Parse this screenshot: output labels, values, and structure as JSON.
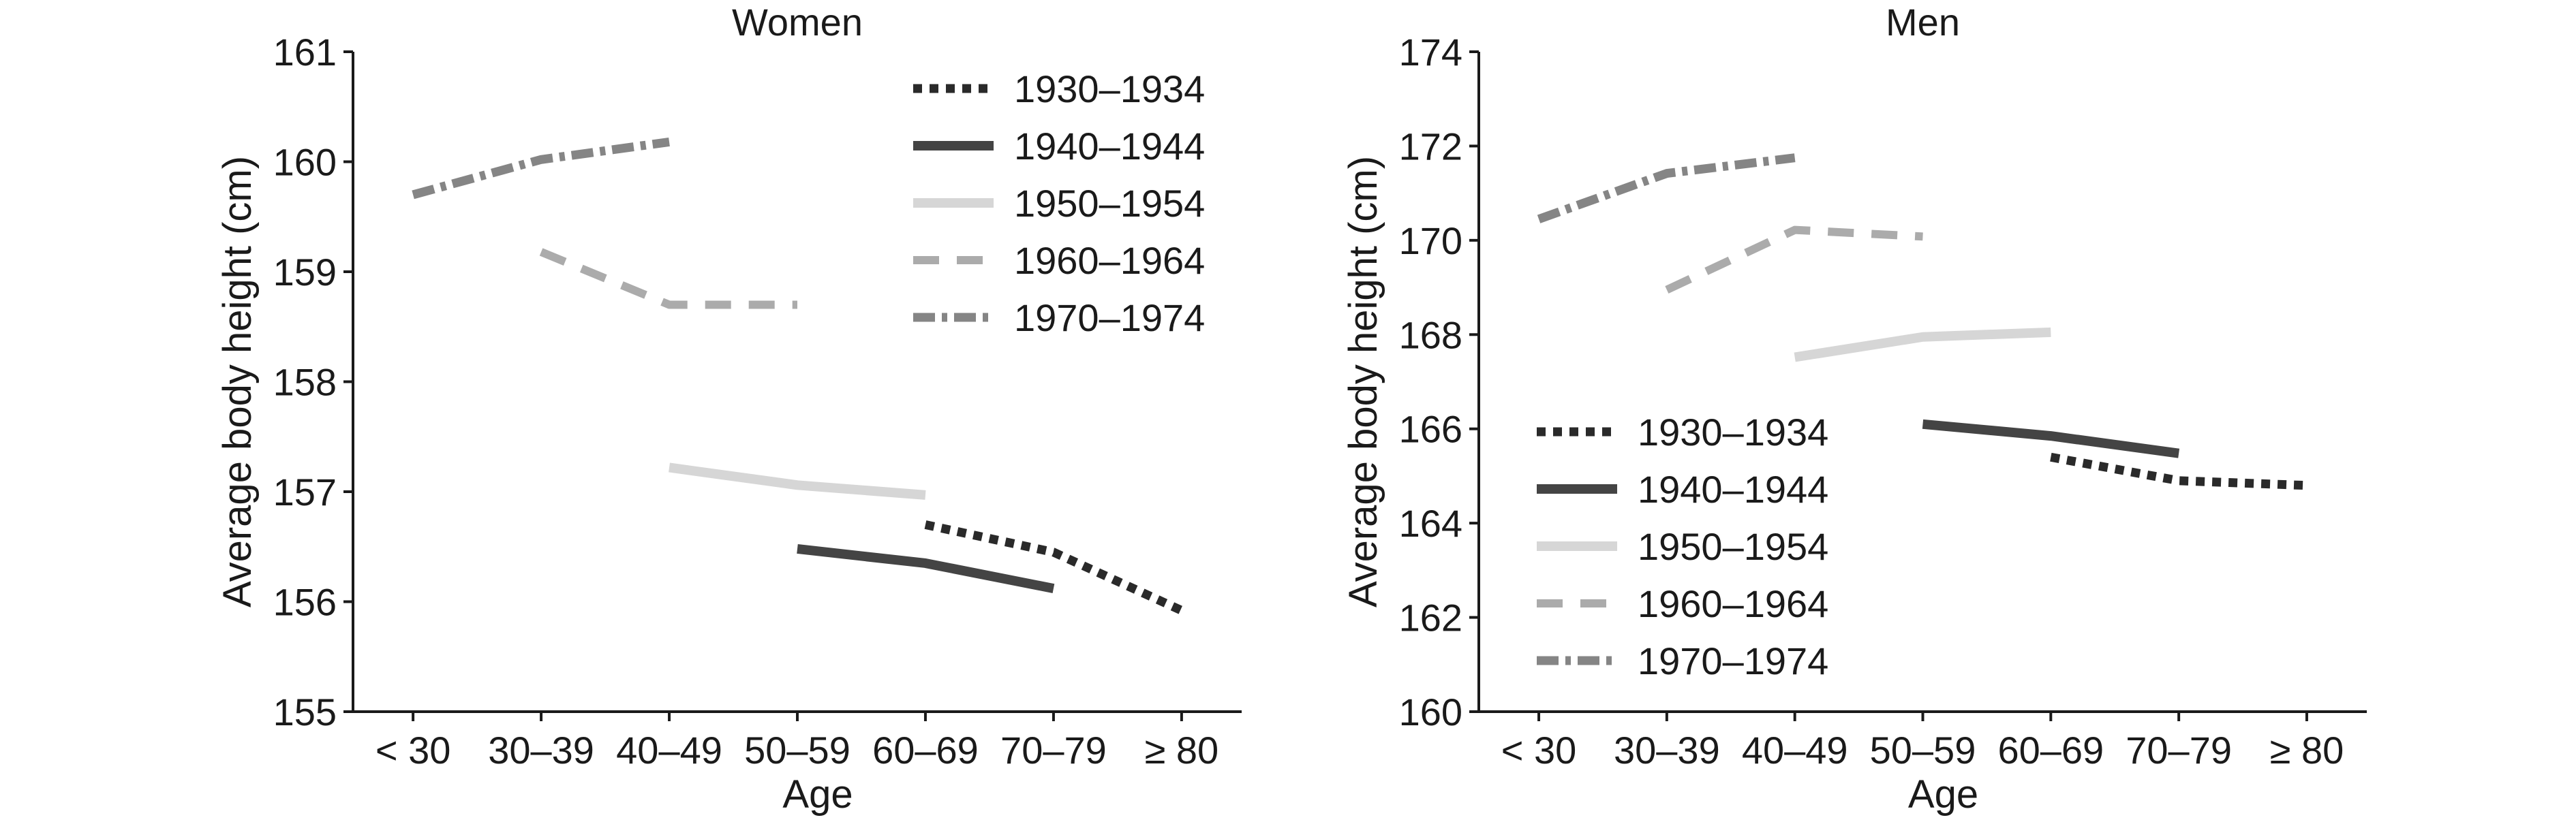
{
  "chart_data": [
    {
      "type": "line",
      "title": "Women",
      "xlabel": "Age",
      "ylabel": "Average body height (cm)",
      "categories": [
        "< 30",
        "30–39",
        "40–49",
        "50–59",
        "60–69",
        "70–79",
        "≥ 80"
      ],
      "ylim": [
        155,
        161
      ],
      "yticks": [
        155,
        156,
        157,
        158,
        159,
        160,
        161
      ],
      "grid": false,
      "legend_position": "top-right",
      "series": [
        {
          "name": "1930–1934",
          "color": "#2a2a2a",
          "dash": "dotted",
          "points": [
            {
              "x": "60–69",
              "y": 156.7
            },
            {
              "x": "70–79",
              "y": 156.45
            },
            {
              "x": "≥ 80",
              "y": 155.92
            }
          ]
        },
        {
          "name": "1940–1944",
          "color": "#444444",
          "dash": "solid",
          "points": [
            {
              "x": "50–59",
              "y": 156.48
            },
            {
              "x": "60–69",
              "y": 156.35
            },
            {
              "x": "70–79",
              "y": 156.12
            }
          ]
        },
        {
          "name": "1950–1954",
          "color": "#d6d6d6",
          "dash": "solid",
          "points": [
            {
              "x": "40–49",
              "y": 157.22
            },
            {
              "x": "50–59",
              "y": 157.06
            },
            {
              "x": "60–69",
              "y": 156.97
            }
          ]
        },
        {
          "name": "1960–1964",
          "color": "#ababab",
          "dash": "dashed",
          "points": [
            {
              "x": "30–39",
              "y": 159.18
            },
            {
              "x": "40–49",
              "y": 158.7
            },
            {
              "x": "50–59",
              "y": 158.7
            }
          ]
        },
        {
          "name": "1970–1974",
          "color": "#858585",
          "dash": "dashdot",
          "points": [
            {
              "x": "< 30",
              "y": 159.7
            },
            {
              "x": "30–39",
              "y": 160.02
            },
            {
              "x": "40–49",
              "y": 160.18
            }
          ]
        }
      ]
    },
    {
      "type": "line",
      "title": "Men",
      "xlabel": "Age",
      "ylabel": "Average body height (cm)",
      "categories": [
        "< 30",
        "30–39",
        "40–49",
        "50–59",
        "60–69",
        "70–79",
        "≥ 80"
      ],
      "ylim": [
        160,
        174
      ],
      "yticks": [
        160,
        162,
        164,
        166,
        168,
        170,
        172,
        174
      ],
      "grid": false,
      "legend_position": "bottom-left",
      "series": [
        {
          "name": "1930–1934",
          "color": "#2a2a2a",
          "dash": "dotted",
          "points": [
            {
              "x": "60–69",
              "y": 165.4
            },
            {
              "x": "70–79",
              "y": 164.9
            },
            {
              "x": "≥ 80",
              "y": 164.8
            }
          ]
        },
        {
          "name": "1940–1944",
          "color": "#444444",
          "dash": "solid",
          "points": [
            {
              "x": "50–59",
              "y": 166.1
            },
            {
              "x": "60–69",
              "y": 165.85
            },
            {
              "x": "70–79",
              "y": 165.48
            }
          ]
        },
        {
          "name": "1950–1954",
          "color": "#d6d6d6",
          "dash": "solid",
          "points": [
            {
              "x": "40–49",
              "y": 167.52
            },
            {
              "x": "50–59",
              "y": 167.95
            },
            {
              "x": "60–69",
              "y": 168.05
            }
          ]
        },
        {
          "name": "1960–1964",
          "color": "#ababab",
          "dash": "dashed",
          "points": [
            {
              "x": "30–39",
              "y": 168.95
            },
            {
              "x": "40–49",
              "y": 170.22
            },
            {
              "x": "50–59",
              "y": 170.08
            }
          ]
        },
        {
          "name": "1970–1974",
          "color": "#858585",
          "dash": "dashdot",
          "points": [
            {
              "x": "< 30",
              "y": 170.45
            },
            {
              "x": "30–39",
              "y": 171.42
            },
            {
              "x": "40–49",
              "y": 171.75
            }
          ]
        }
      ]
    }
  ]
}
